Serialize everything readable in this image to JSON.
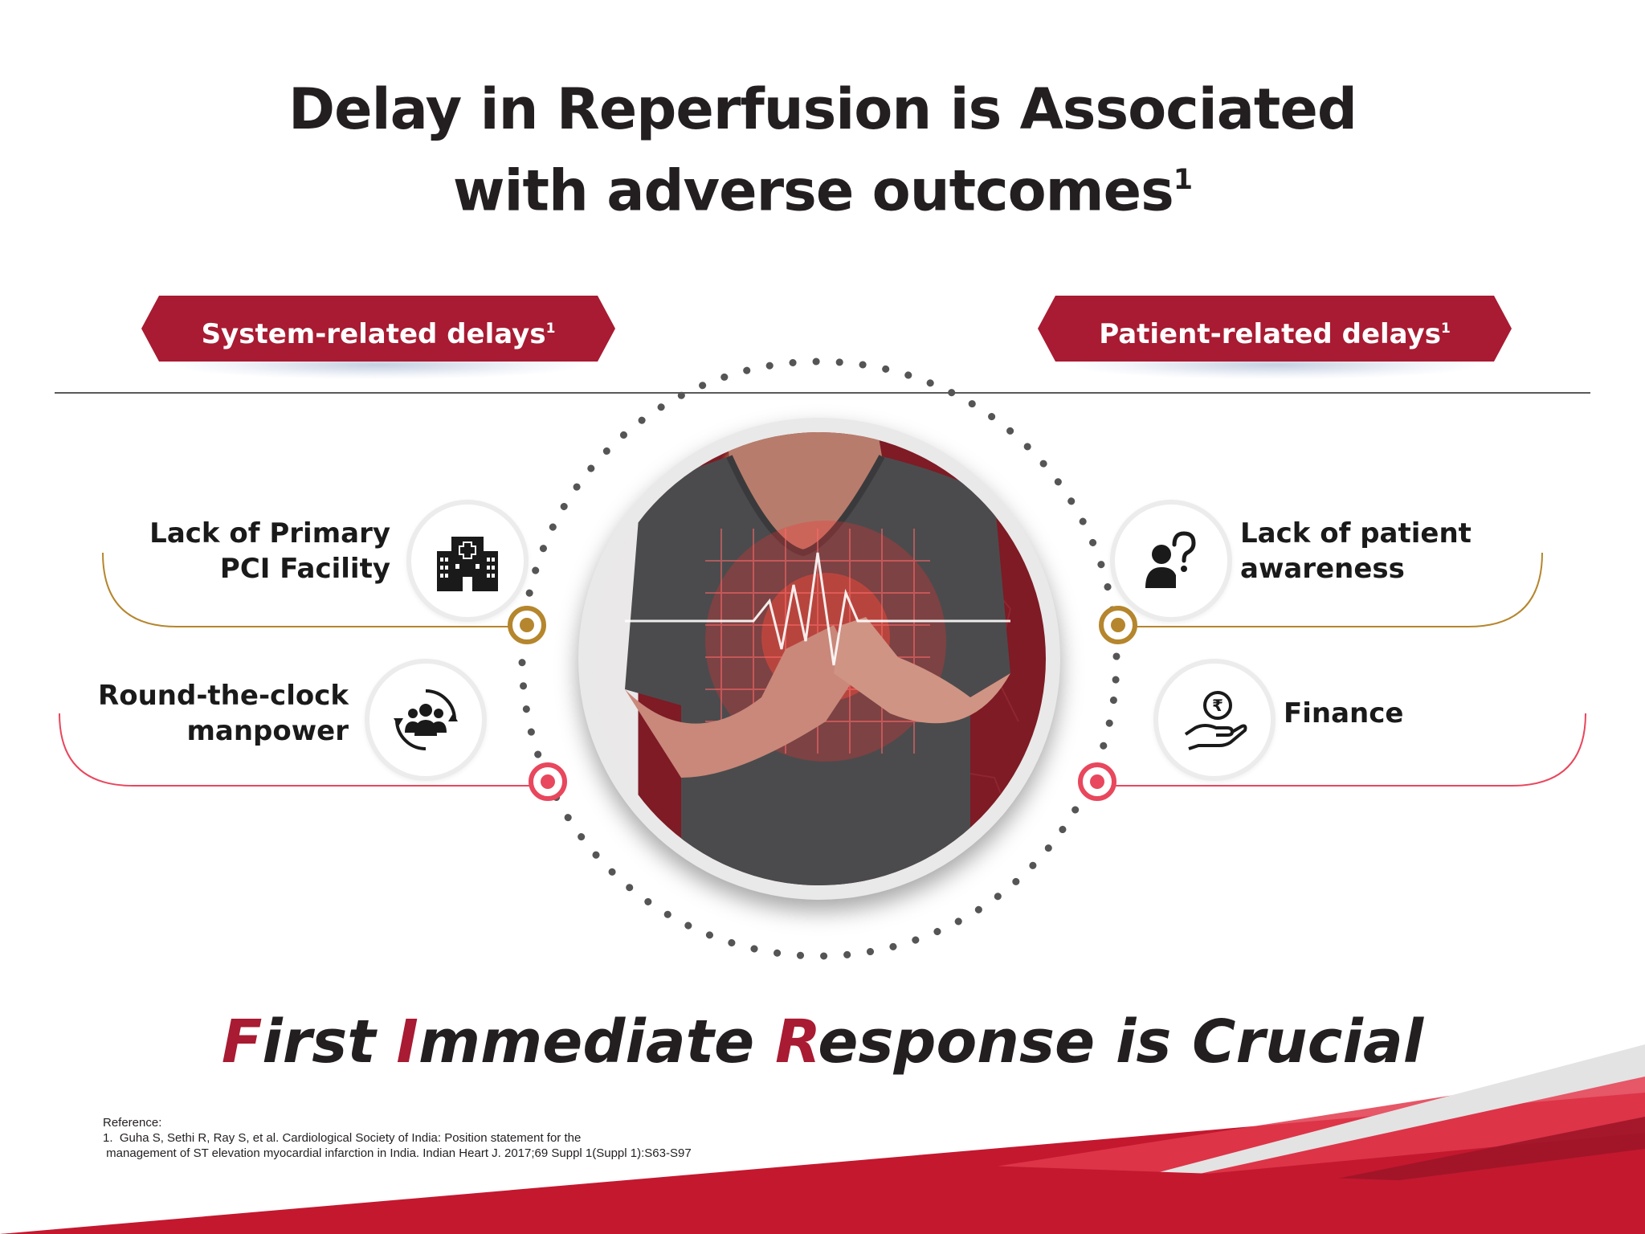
{
  "title": {
    "line1": "Delay in Reperfusion is Associated",
    "line2": "with adverse outcomes",
    "sup": "1"
  },
  "banners": {
    "left": {
      "label": "System-related delays",
      "sup": "1"
    },
    "right": {
      "label": "Patient-related delays",
      "sup": "1"
    }
  },
  "system_delays": [
    {
      "line1": "Lack of Primary",
      "line2": "PCI Facility",
      "icon": "hospital-icon"
    },
    {
      "line1": "Round-the-clock",
      "line2": "manpower",
      "icon": "team-icon"
    }
  ],
  "patient_delays": [
    {
      "line1": "Lack of patient",
      "line2": "awareness",
      "icon": "question-person-icon"
    },
    {
      "line1": "Finance",
      "line2": "",
      "icon": "rupee-hand-icon"
    }
  ],
  "tagline": {
    "f": "F",
    "irst": "irst ",
    "i": "I",
    "mmediate": "mmediate ",
    "r": "R",
    "esponse": "esponse is Crucial"
  },
  "reference": {
    "heading": "Reference:",
    "line1": "1.  Guha S, Sethi R, Ray S, et al. Cardiological Society of India: Position statement for the",
    "line2": " management of ST elevation myocardial infarction in India. Indian Heart J. 2017;69 Suppl 1(Suppl 1):S63-S97"
  },
  "colors": {
    "brand_red": "#a81b32",
    "gold": "#b5862d",
    "pink": "#e8475d",
    "text": "#231f20"
  }
}
